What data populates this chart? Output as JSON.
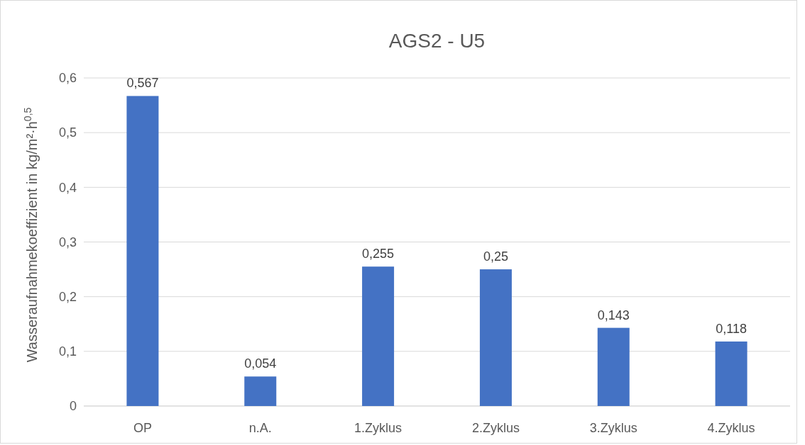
{
  "chart_data": {
    "type": "bar",
    "title": "AGS2 - U5",
    "ylabel": "Wasseraufnahmekoeffizient in kg/m²·h$^{0,5}$",
    "categories": [
      "OP",
      "n.A.",
      "1.Zyklus",
      "2.Zyklus",
      "3.Zyklus",
      "4.Zyklus"
    ],
    "values": [
      0.567,
      0.054,
      0.255,
      0.25,
      0.143,
      0.118
    ],
    "value_labels": [
      "0,567",
      "0,054",
      "0,255",
      "0,25",
      "0,143",
      "0,118"
    ],
    "color": "#4472c4",
    "ylim": [
      0,
      0.6
    ],
    "yticks": [
      0,
      {
        "value": 0.1,
        "label": "0,1"
      },
      {
        "value": 0.2,
        "label": "0,2"
      },
      {
        "value": 0.3,
        "label": "0,3"
      },
      {
        "value": 0.4,
        "label": "0,4"
      },
      {
        "value": 0.5,
        "label": "0,5"
      },
      {
        "value": 0.6,
        "label": "0,6"
      }
    ],
    "grid": "y"
  }
}
